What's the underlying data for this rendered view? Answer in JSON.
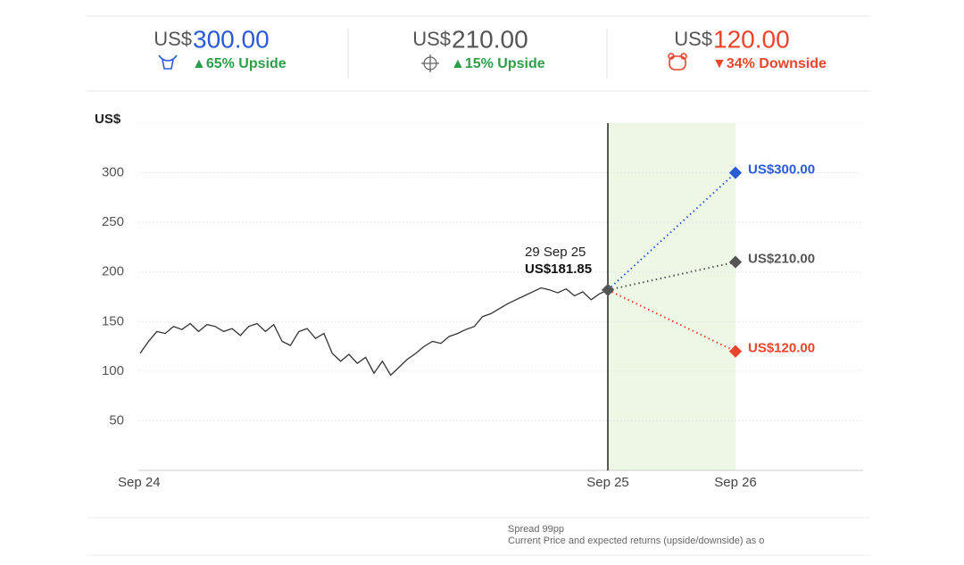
{
  "header": {
    "cards": [
      {
        "currency": "US$",
        "price": "300.00",
        "change": "▲65% Upside",
        "color": "#2a5bd7",
        "change_color": "#2e9e4a"
      },
      {
        "currency": "US$",
        "price": "210.00",
        "change": "▲15% Upside",
        "color": "#555555",
        "change_color": "#2e9e4a"
      },
      {
        "currency": "US$",
        "price": "120.00",
        "change": "▼34% Downside",
        "color": "#e8452c",
        "change_color": "#e8452c"
      }
    ]
  },
  "chart_data": {
    "type": "line",
    "y_label": "US$",
    "categories": [
      "Sep 24",
      "Sep 25",
      "Sep 26"
    ],
    "ylim": [
      0,
      350
    ],
    "yticks": [
      50,
      100,
      150,
      200,
      250,
      300
    ],
    "grid": true,
    "history": {
      "color": "#333333",
      "values": [
        118,
        130,
        140,
        138,
        145,
        142,
        148,
        140,
        147,
        145,
        140,
        143,
        136,
        145,
        148,
        140,
        147,
        130,
        126,
        140,
        143,
        133,
        138,
        118,
        110,
        117,
        108,
        114,
        98,
        110,
        96,
        104,
        112,
        118,
        125,
        130,
        128,
        135,
        138,
        142,
        145,
        155,
        158,
        163,
        168,
        172,
        176,
        180,
        184,
        182,
        179,
        183,
        176,
        180,
        172,
        178,
        181.85
      ]
    },
    "current": {
      "date": "29 Sep 25",
      "value": 181.85,
      "value_label": "US$181.85"
    },
    "targets": {
      "values": [
        300,
        210,
        120
      ],
      "value_labels": [
        "US$300.00",
        "US$210.00",
        "US$120.00"
      ],
      "colors": [
        "#2a5bd7",
        "#555555",
        "#e8452c"
      ]
    },
    "notes": [
      "Spread 99pp",
      "Current Price and expected returns (upside/downside) as o"
    ]
  }
}
